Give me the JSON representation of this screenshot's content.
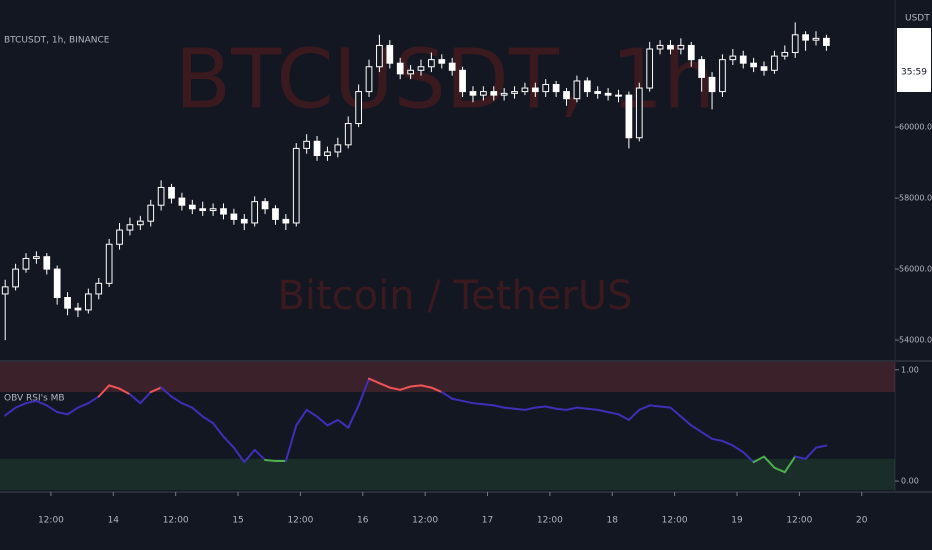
{
  "chart_data": [
    {
      "type": "candlestick",
      "title": "BTCUSDT, 1h, BINANCE",
      "watermark": "BTCUSDT, 1h",
      "watermark_subtitle": "Bitcoin / TetherUS",
      "currency": "USDT",
      "countdown": "35:59",
      "up_color": "#ffffff",
      "down_color": "#ffffff",
      "watermark_color": "#3a1a1e",
      "open": [
        55300,
        55500,
        56000,
        56300,
        56350,
        56000,
        55200,
        54900,
        54850,
        55300,
        55600,
        56700,
        57100,
        57250,
        57350,
        57800,
        58300,
        58000,
        57800,
        57700,
        57650,
        57700,
        57550,
        57400,
        57300,
        57900,
        57700,
        57400,
        57300,
        59400,
        59600,
        59200,
        59300,
        59500,
        60100,
        61000,
        61700,
        62300,
        61800,
        61500,
        61600,
        61700,
        61900,
        61800,
        61600,
        61000,
        60900,
        61000,
        60900,
        60950,
        61000,
        61100,
        61000,
        61200,
        61000,
        60800,
        61300,
        61000,
        60950,
        60900,
        60900,
        59700,
        61100,
        62200,
        62300,
        62200,
        62300,
        61900,
        61400,
        61000,
        61900,
        62000,
        61800,
        61700,
        61600,
        62000,
        62100,
        62600,
        62450,
        62500
      ],
      "high": [
        55700,
        56150,
        56450,
        56500,
        56450,
        56100,
        55350,
        55050,
        55450,
        55750,
        56850,
        57300,
        57450,
        57500,
        57950,
        58500,
        58400,
        58150,
        57950,
        57900,
        57850,
        57850,
        57700,
        57550,
        58050,
        58000,
        57800,
        57550,
        59550,
        59800,
        59750,
        59450,
        59700,
        60300,
        61200,
        61900,
        62600,
        62450,
        61950,
        61750,
        61900,
        62100,
        62050,
        61950,
        61700,
        61150,
        61150,
        61150,
        61100,
        61150,
        61250,
        61250,
        61350,
        61300,
        61100,
        61450,
        61400,
        61150,
        61100,
        61050,
        61000,
        61250,
        62400,
        62450,
        62450,
        62500,
        62400,
        62000,
        61550,
        62050,
        62200,
        62150,
        61950,
        61850,
        62150,
        62300,
        62950,
        62700,
        62700,
        62600
      ],
      "low": [
        54000,
        55400,
        55900,
        56150,
        55850,
        55000,
        54700,
        54650,
        54750,
        55150,
        55500,
        56550,
        56950,
        57100,
        57200,
        57650,
        57850,
        57650,
        57550,
        57500,
        57500,
        57400,
        57250,
        57100,
        57200,
        57550,
        57250,
        57100,
        57200,
        59250,
        59050,
        59050,
        59150,
        59400,
        60000,
        60850,
        61550,
        61650,
        61350,
        61350,
        61450,
        61550,
        61650,
        61450,
        60850,
        60700,
        60750,
        60750,
        60750,
        60800,
        60900,
        60850,
        60850,
        60850,
        60600,
        60700,
        60850,
        60800,
        60750,
        60700,
        59400,
        59600,
        61000,
        62050,
        62050,
        62050,
        61700,
        61000,
        60500,
        60850,
        61750,
        61650,
        61550,
        61450,
        61500,
        61900,
        61950,
        62150,
        62300,
        62150
      ],
      "close": [
        55500,
        56000,
        56300,
        56350,
        56000,
        55200,
        54900,
        54850,
        55300,
        55600,
        56700,
        57100,
        57250,
        57350,
        57800,
        58300,
        58000,
        57800,
        57700,
        57650,
        57700,
        57550,
        57400,
        57300,
        57900,
        57700,
        57400,
        57300,
        59400,
        59600,
        59200,
        59300,
        59500,
        60100,
        61000,
        61700,
        62300,
        61800,
        61500,
        61600,
        61700,
        61900,
        61800,
        61600,
        61000,
        60900,
        61000,
        60900,
        60950,
        61000,
        61100,
        61000,
        61200,
        61000,
        60800,
        61300,
        61000,
        60950,
        60900,
        60900,
        59700,
        61100,
        62200,
        62300,
        62200,
        62300,
        61900,
        61400,
        61000,
        61900,
        62000,
        61800,
        61700,
        61600,
        62000,
        62100,
        62600,
        62450,
        62500,
        62300
      ],
      "xlim": [
        -0.5,
        85.6
      ],
      "ylim": [
        53440,
        63580
      ],
      "yticks": [
        {
          "value": 54000,
          "label": "54000.00"
        },
        {
          "value": 56000,
          "label": "56000.00"
        },
        {
          "value": 58000,
          "label": "58000.00"
        },
        {
          "value": 60000,
          "label": "60000.00"
        }
      ]
    },
    {
      "type": "line",
      "title": "OBV RSI's MB",
      "values": [
        0.59,
        0.66,
        0.7,
        0.72,
        0.68,
        0.62,
        0.6,
        0.66,
        0.7,
        0.76,
        0.86,
        0.83,
        0.78,
        0.7,
        0.8,
        0.84,
        0.76,
        0.7,
        0.66,
        0.58,
        0.52,
        0.4,
        0.3,
        0.17,
        0.28,
        0.19,
        0.18,
        0.18,
        0.5,
        0.64,
        0.58,
        0.5,
        0.55,
        0.48,
        0.68,
        0.92,
        0.88,
        0.84,
        0.82,
        0.85,
        0.86,
        0.84,
        0.8,
        0.74,
        0.72,
        0.7,
        0.69,
        0.68,
        0.66,
        0.65,
        0.64,
        0.66,
        0.67,
        0.65,
        0.64,
        0.66,
        0.65,
        0.64,
        0.62,
        0.6,
        0.55,
        0.64,
        0.68,
        0.67,
        0.66,
        0.58,
        0.5,
        0.44,
        0.38,
        0.36,
        0.32,
        0.26,
        0.17,
        0.22,
        0.12,
        0.08,
        0.22,
        0.2,
        0.3,
        0.32
      ],
      "color": "#3f2fb8",
      "overbought": 0.8,
      "oversold": 0.2,
      "overbought_color": "#f05454",
      "oversold_color": "#4caf50",
      "xlim": [
        -0.5,
        85.6
      ],
      "ylim": [
        -0.08,
        1.07
      ],
      "yticks": [
        {
          "value": 0,
          "label": "0.00"
        },
        {
          "value": 1,
          "label": "1.00"
        }
      ],
      "xticks": [
        {
          "value": 4.4,
          "label": "12:00"
        },
        {
          "value": 10.4,
          "label": "14"
        },
        {
          "value": 16.4,
          "label": "12:00"
        },
        {
          "value": 22.4,
          "label": "15"
        },
        {
          "value": 28.4,
          "label": "12:00"
        },
        {
          "value": 34.4,
          "label": "16"
        },
        {
          "value": 40.4,
          "label": "12:00"
        },
        {
          "value": 46.4,
          "label": "17"
        },
        {
          "value": 52.4,
          "label": "12:00"
        },
        {
          "value": 58.4,
          "label": "18"
        },
        {
          "value": 64.4,
          "label": "12:00"
        },
        {
          "value": 70.4,
          "label": "19"
        },
        {
          "value": 76.4,
          "label": "12:00"
        },
        {
          "value": 82.4,
          "label": "20"
        }
      ]
    }
  ]
}
